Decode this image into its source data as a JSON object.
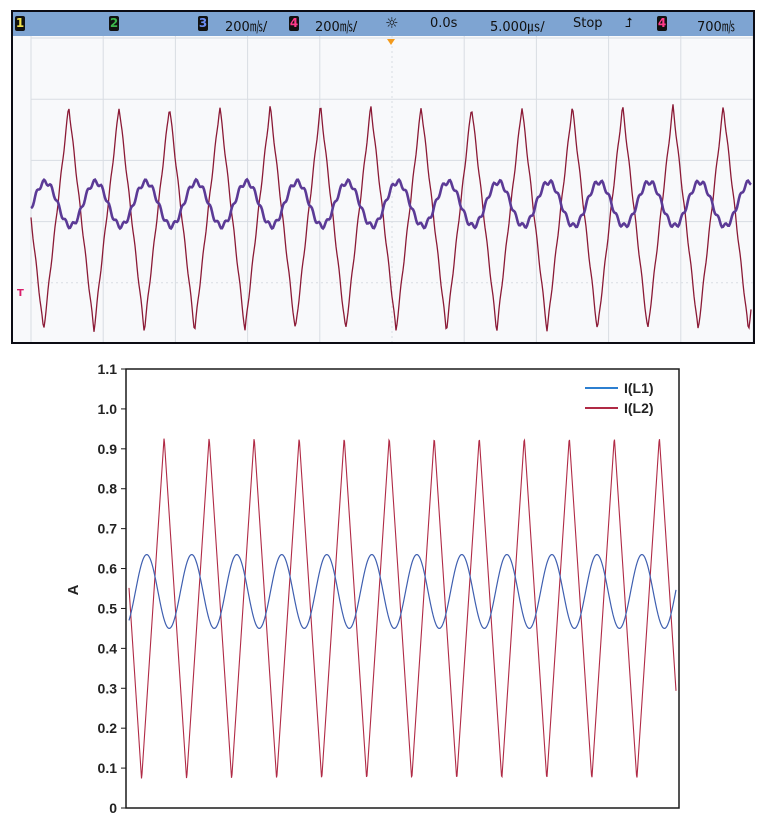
{
  "scope": {
    "status": {
      "ch1_label": "1",
      "ch2_label": "2",
      "ch3_label": "3",
      "ch3_scale": "200㎧/",
      "ch4_label": "4",
      "ch4_scale": "200㎧/",
      "trigger_icon": "sun-icon",
      "delay": "0.0s",
      "timebase": "5.000㎲/",
      "run_state": "Stop",
      "trigger_slope_icon": "rising-edge-icon",
      "trig_channel": "4",
      "trig_level": "700㎧"
    },
    "trigger_marker": "T",
    "colors": {
      "status_bg": "#7ea4d2",
      "ch1": "#f0e04a",
      "ch2": "#3cb44b",
      "ch3": "#3a5fd0",
      "ch4": "#d81e6a",
      "trace_purple": "#5b3a96",
      "trace_red": "#8b1a36"
    }
  },
  "chart_data": {
    "type": "line",
    "title": "",
    "xlabel": "",
    "ylabel": "A",
    "ylim": [
      0,
      1.1
    ],
    "yticks": [
      "0",
      "0.1",
      "0.2",
      "0.3",
      "0.4",
      "0.5",
      "0.6",
      "0.7",
      "0.8",
      "0.9",
      "1.0",
      "1.1"
    ],
    "grid": false,
    "legend_position": "top-right",
    "cycles": 12,
    "series": [
      {
        "name": "I(L1)",
        "color": "#2c7fd0",
        "waveform": "sinusoid",
        "min": 0.45,
        "max": 0.635
      },
      {
        "name": "I(L2)",
        "color": "#b02a45",
        "waveform": "triangle",
        "min": 0.07,
        "max": 0.93
      }
    ]
  }
}
